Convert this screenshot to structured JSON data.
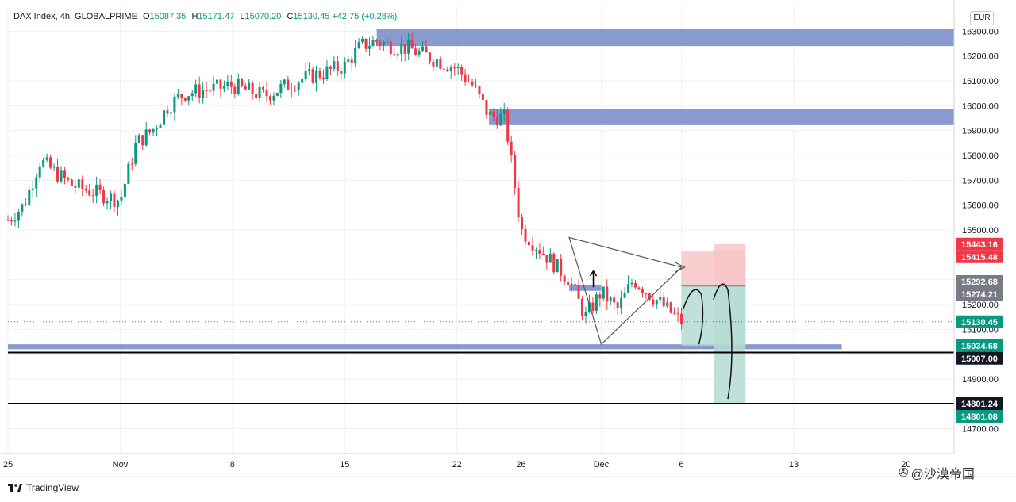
{
  "header": {
    "symbol_text": "DAX Index, 4h, GLOBALPRIME",
    "open_label": "O",
    "open": "15087.35",
    "high_label": "H",
    "high": "15171.47",
    "low_label": "L",
    "low": "15070.20",
    "close_label": "C",
    "close": "15130.45",
    "change": "+42.75 (+0.28%)"
  },
  "currency": "EUR",
  "branding": {
    "logo_text": "TradingView",
    "watermark": "@沙漠帝国"
  },
  "colors": {
    "up": "#089981",
    "down": "#f23645",
    "zone": "#7b8fc9",
    "stop": "#f7c6c6",
    "target": "#b5dcd4",
    "grid": "#eef0f3"
  },
  "chart_data": {
    "type": "candlestick",
    "timeframe": "4h",
    "ylim": [
      14600,
      16400
    ],
    "y_ticks": [
      14700,
      14800,
      14900,
      15000,
      15100,
      15200,
      15300,
      15400,
      15500,
      15600,
      15700,
      15800,
      15900,
      16000,
      16100,
      16200,
      16300
    ],
    "y_tick_labels": [
      "14700.00",
      "14800.00",
      "14900.00",
      "15000.00",
      "15100.00",
      "15200.00",
      "15300.00",
      "15400.00",
      "15500.00",
      "15600.00",
      "15700.00",
      "15800.00",
      "15900.00",
      "16000.00",
      "16100.00",
      "16200.00",
      "16300.00"
    ],
    "x_ticks": [
      {
        "label": "25",
        "date": "2021-10-25"
      },
      {
        "label": "Nov",
        "date": "2021-11-01"
      },
      {
        "label": "8",
        "date": "2021-11-08"
      },
      {
        "label": "15",
        "date": "2021-11-15"
      },
      {
        "label": "22",
        "date": "2021-11-22"
      },
      {
        "label": "26",
        "date": "2021-11-26"
      },
      {
        "label": "Dec",
        "date": "2021-12-01"
      },
      {
        "label": "6",
        "date": "2021-12-06"
      },
      {
        "label": "13",
        "date": "2021-12-13"
      },
      {
        "label": "20",
        "date": "2021-12-20"
      }
    ],
    "xlim": [
      "2021-10-25",
      "2021-12-23"
    ],
    "price_path": [
      [
        "2021-10-25",
        15540
      ],
      [
        "2021-10-26",
        15600
      ],
      [
        "2021-10-27",
        15780
      ],
      [
        "2021-10-28",
        15730
      ],
      [
        "2021-10-29",
        15680
      ],
      [
        "2021-11-01",
        15620
      ],
      [
        "2021-11-02",
        15850
      ],
      [
        "2021-11-03",
        15900
      ],
      [
        "2021-11-04",
        16000
      ],
      [
        "2021-11-05",
        16050
      ],
      [
        "2021-11-08",
        16080
      ],
      [
        "2021-11-09",
        16060
      ],
      [
        "2021-11-10",
        16040
      ],
      [
        "2021-11-11",
        16070
      ],
      [
        "2021-11-12",
        16100
      ],
      [
        "2021-11-15",
        16160
      ],
      [
        "2021-11-16",
        16240
      ],
      [
        "2021-11-17",
        16260
      ],
      [
        "2021-11-18",
        16240
      ],
      [
        "2021-11-19",
        16230
      ],
      [
        "2021-11-22",
        16150
      ],
      [
        "2021-11-23",
        16080
      ],
      [
        "2021-11-24",
        15960
      ],
      [
        "2021-11-25",
        15950
      ],
      [
        "2021-11-26",
        15500
      ],
      [
        "2021-11-29",
        15300
      ],
      [
        "2021-11-30",
        15150
      ],
      [
        "2021-12-01",
        15250
      ],
      [
        "2021-12-02",
        15180
      ],
      [
        "2021-12-03",
        15300
      ],
      [
        "2021-12-06",
        15130
      ]
    ],
    "annotations": {
      "zones": [
        {
          "from": "2021-11-17",
          "to": "2021-12-23",
          "low": 16240,
          "high": 16310
        },
        {
          "from": "2021-11-24",
          "to": "2021-12-23",
          "low": 15925,
          "high": 15985
        },
        {
          "from": "2021-10-25",
          "to": "2021-12-16",
          "low": 15020,
          "high": 15040
        },
        {
          "from": "2021-11-29",
          "to": "2021-12-01",
          "low": 15255,
          "high": 15280
        }
      ],
      "hlines": [
        15007.0,
        14801.24
      ],
      "triangle": [
        [
          "2021-11-29",
          15470
        ],
        [
          "2021-12-06",
          15350
        ],
        [
          "2021-12-01",
          15040
        ]
      ],
      "position_boxes": [
        {
          "from": "2021-12-06",
          "to": "2021-12-10",
          "entry": 15274.21,
          "stop": 15415.48,
          "target": 15034.68
        },
        {
          "from": "2021-12-08",
          "to": "2021-12-10",
          "entry": 15274.21,
          "stop": 15443.16,
          "target": 14801.08
        }
      ]
    },
    "price_labels": [
      {
        "value": 15443.16,
        "text": "15443.16",
        "color": "#f23645"
      },
      {
        "value": 15415.48,
        "text": "15415.48",
        "color": "#f23645"
      },
      {
        "value": 15292.68,
        "text": "15292.68",
        "color": "#787b86"
      },
      {
        "value": 15274.21,
        "text": "15274.21",
        "color": "#787b86"
      },
      {
        "value": 15130.45,
        "text": "15130.45",
        "color": "#089981"
      },
      {
        "value": 15034.68,
        "text": "15034.68",
        "color": "#089981"
      },
      {
        "value": 15007.0,
        "text": "15007.00",
        "color": "#131722"
      },
      {
        "value": 14801.24,
        "text": "14801.24",
        "color": "#131722"
      },
      {
        "value": 14801.08,
        "text": "14801.08",
        "color": "#089981"
      }
    ]
  }
}
